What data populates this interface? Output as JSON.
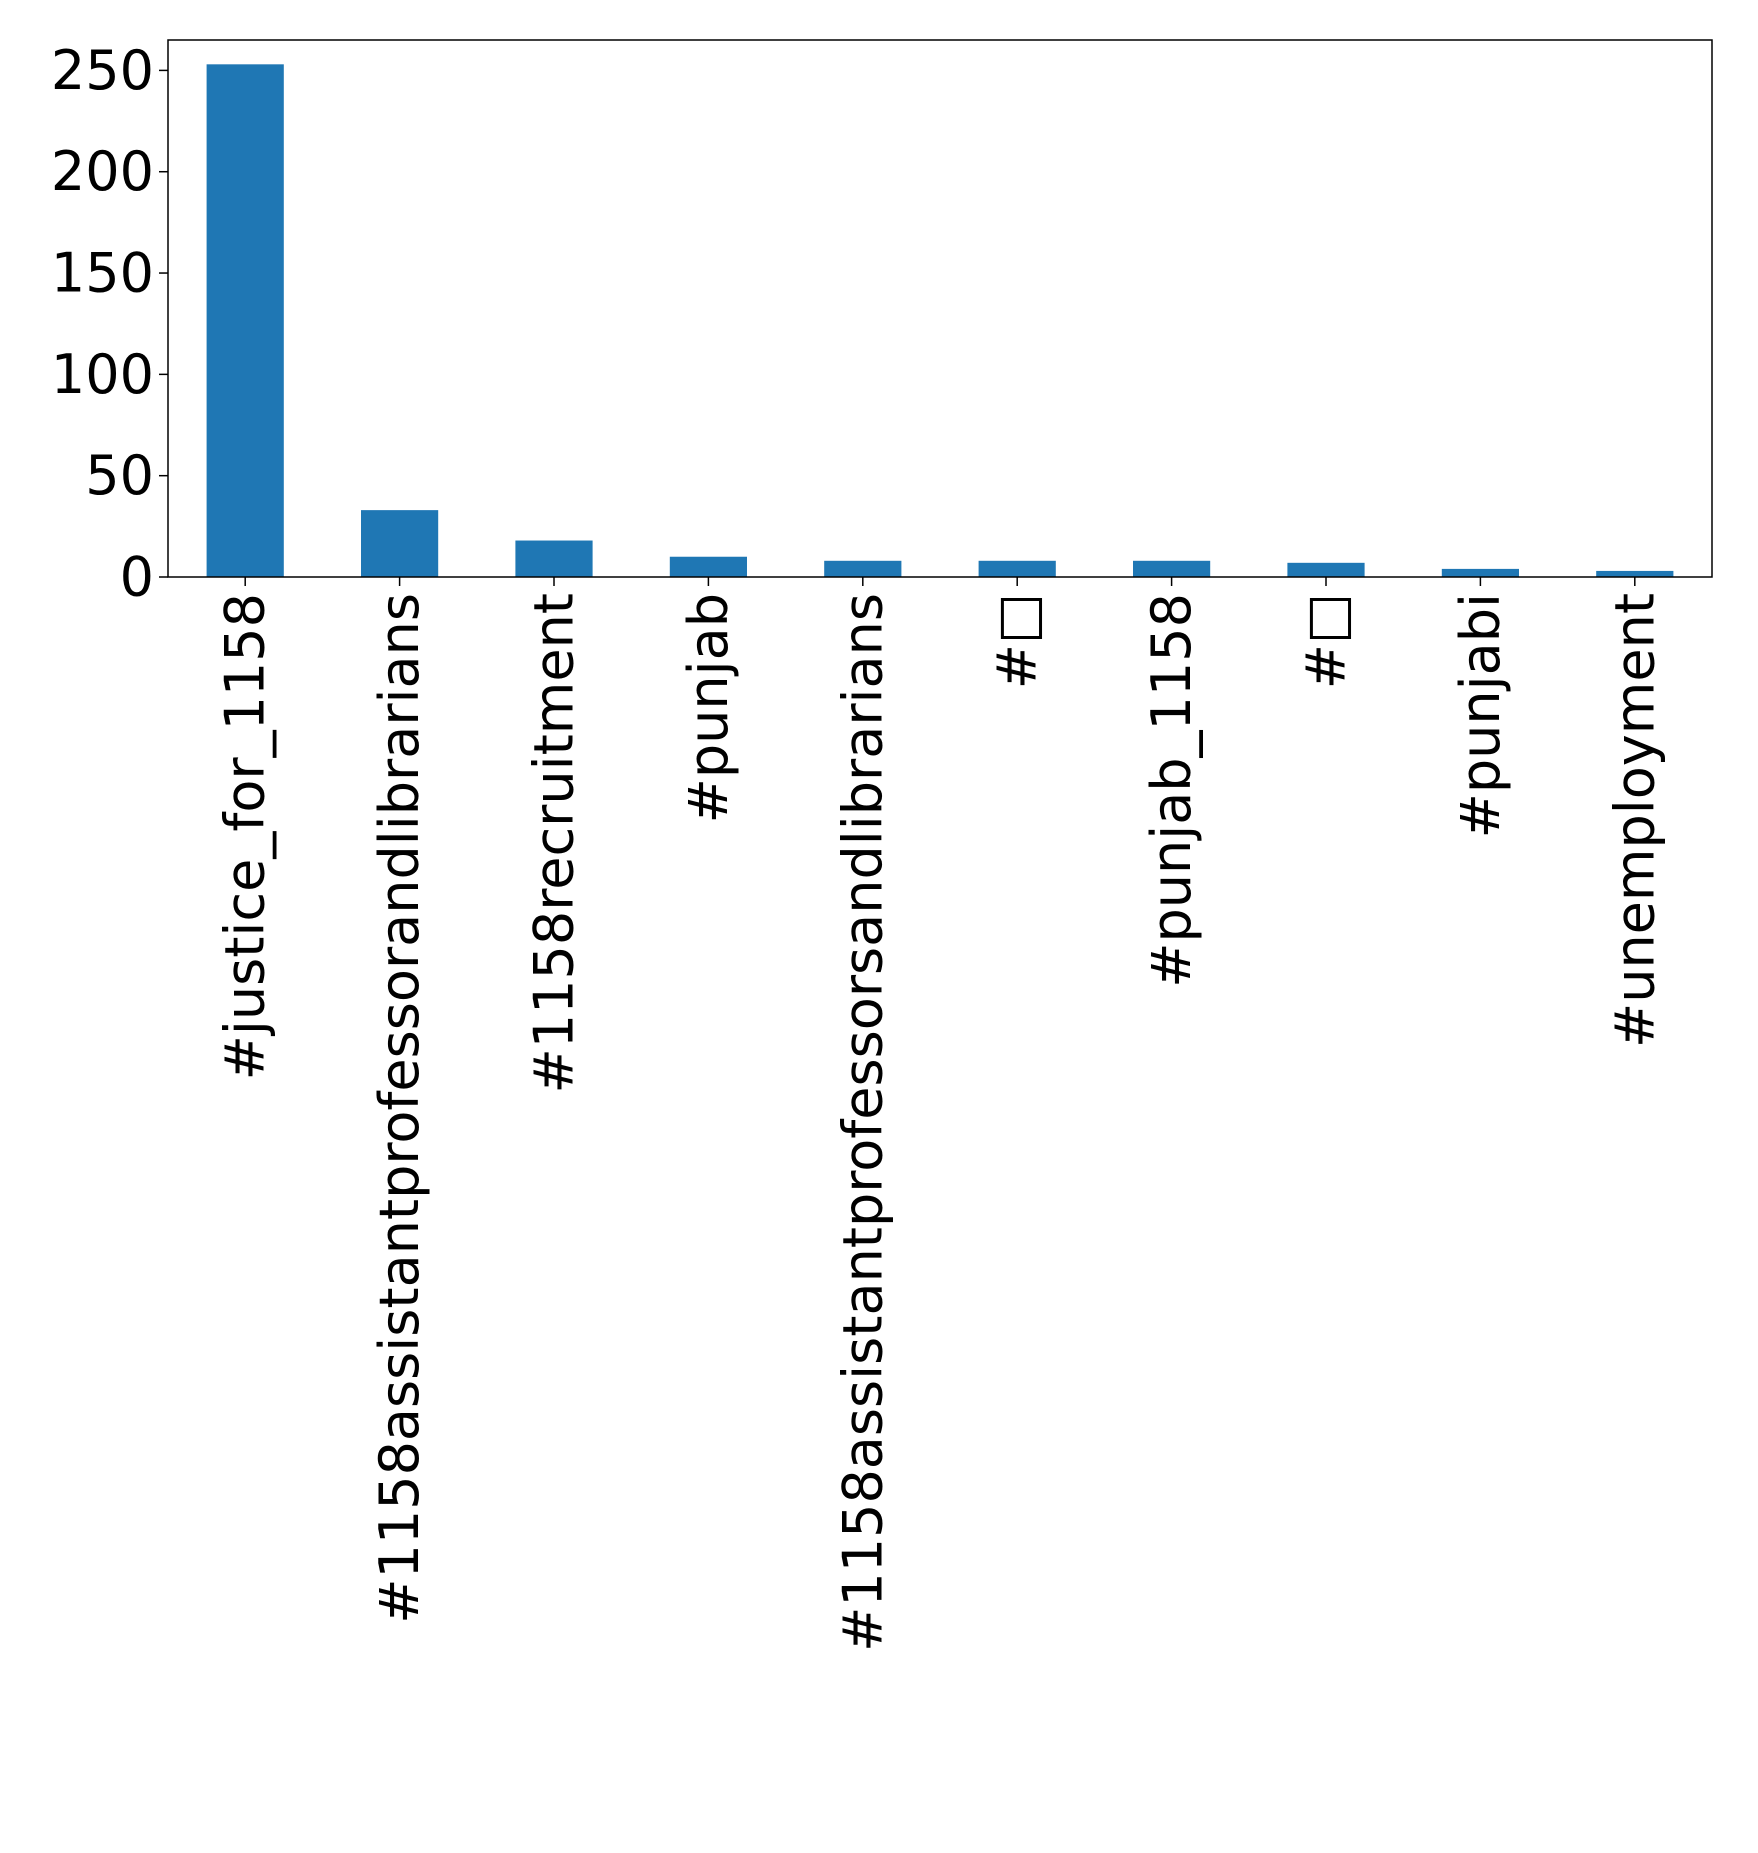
{
  "chart_data": {
    "type": "bar",
    "title": "",
    "xlabel": "",
    "ylabel": "",
    "categories": [
      "#justice_for_1158",
      "#1158assistantprofessorandlibrarians",
      "#1158recruitment",
      "#punjab",
      "#1158assistantprofessorsandlibrarians",
      "#□",
      "#punjab_1158",
      "#□",
      "#punjabi",
      "#unemployment"
    ],
    "values": [
      253,
      33,
      18,
      10,
      8,
      8,
      8,
      7,
      4,
      3
    ],
    "ylim": [
      0,
      265
    ],
    "yticks": [
      0,
      50,
      100,
      150,
      200,
      250
    ],
    "bar_color": "#1f77b4",
    "grid": false,
    "legend": "none"
  }
}
